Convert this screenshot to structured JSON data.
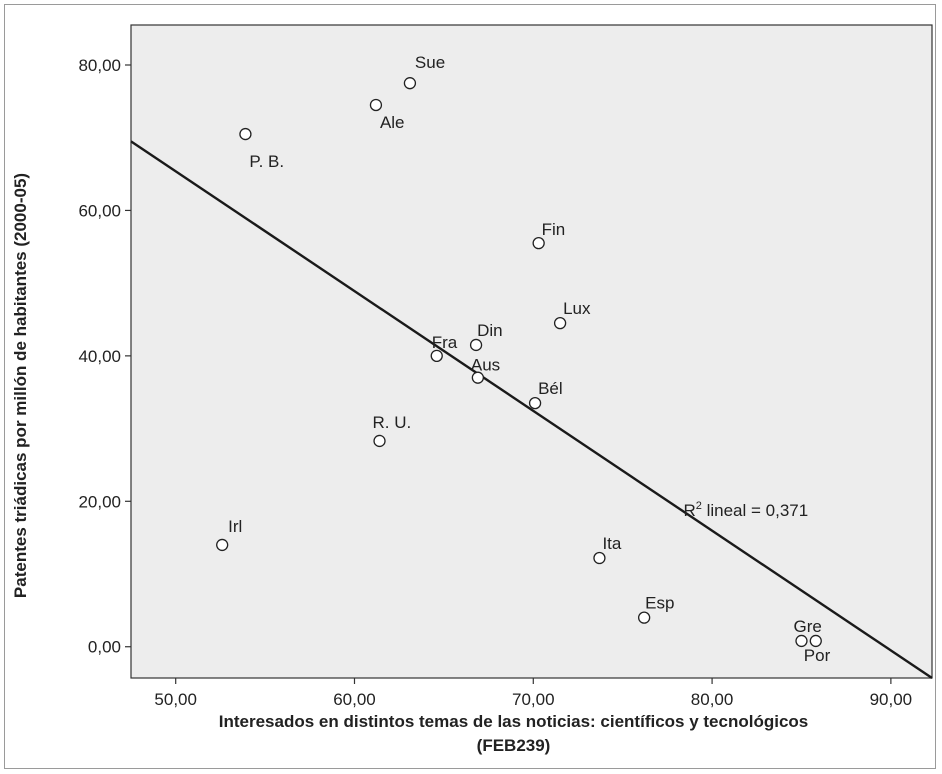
{
  "chart_data": {
    "type": "scatter",
    "xlabel": "Interesados en distintos temas de las noticias: científicos y tecnológicos",
    "xlabel_line2": "(FEB239)",
    "ylabel": "Patentes triádicas por millón de habitantes (2000-05)",
    "xlim": [
      47.5,
      92.3
    ],
    "ylim": [
      -4.3,
      85.5
    ],
    "x_ticks": [
      50,
      60,
      70,
      80,
      90
    ],
    "x_tick_labels": [
      "50,00",
      "60,00",
      "70,00",
      "80,00",
      "90,00"
    ],
    "y_ticks": [
      0,
      20,
      40,
      60,
      80
    ],
    "y_tick_labels": [
      "0,00",
      "20,00",
      "40,00",
      "60,00",
      "80,00"
    ],
    "grid": false,
    "background": "#ededed",
    "marker": "open-circle",
    "points": [
      {
        "label": "Sue",
        "x": 63.1,
        "y": 77.5
      },
      {
        "label": "Ale",
        "x": 61.2,
        "y": 74.5
      },
      {
        "label": "P. B.",
        "x": 53.9,
        "y": 70.5
      },
      {
        "label": "Fin",
        "x": 70.3,
        "y": 55.5
      },
      {
        "label": "Lux",
        "x": 71.5,
        "y": 44.5
      },
      {
        "label": "Din",
        "x": 66.8,
        "y": 41.5
      },
      {
        "label": "Fra",
        "x": 64.6,
        "y": 40.0
      },
      {
        "label": "Aus",
        "x": 66.9,
        "y": 37.0
      },
      {
        "label": "Bél",
        "x": 70.1,
        "y": 33.5
      },
      {
        "label": "R. U.",
        "x": 61.4,
        "y": 28.3
      },
      {
        "label": "Irl",
        "x": 52.6,
        "y": 14.0
      },
      {
        "label": "Ita",
        "x": 73.7,
        "y": 12.2
      },
      {
        "label": "Esp",
        "x": 76.2,
        "y": 4.0
      },
      {
        "label": "Gre",
        "x": 85.0,
        "y": 0.8
      },
      {
        "label": "Por",
        "x": 85.8,
        "y": 0.8
      }
    ],
    "fit_line": {
      "x": [
        47.5,
        92.3
      ],
      "y": [
        69.5,
        -4.3
      ]
    },
    "annotation": {
      "text_main": "R",
      "text_sup": "2",
      "text_rest": " lineal = 0,371",
      "x": 78.4,
      "y": 18.0
    }
  }
}
